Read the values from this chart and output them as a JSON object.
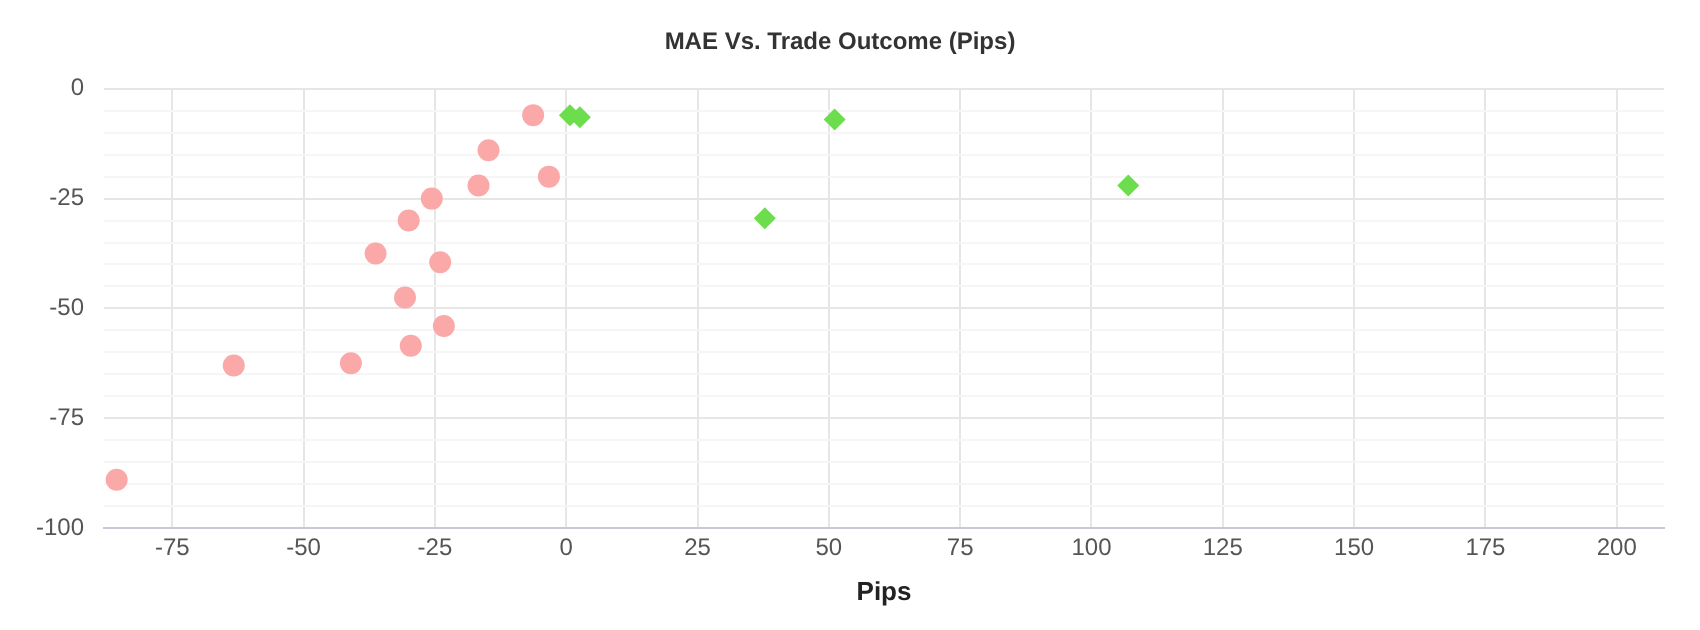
{
  "chart_data": {
    "type": "scatter",
    "title": "MAE Vs. Trade Outcome (Pips)",
    "xlabel": "Pips",
    "series": [
      {
        "color": "#fba8a8",
        "marker": "circle",
        "x": [
          -85.6,
          -63.3,
          -41,
          -29.6,
          -30.7,
          -23.3,
          -36.3,
          -24,
          -30,
          -25.6,
          -16.7,
          -14.8,
          -3.3,
          -6.3
        ],
        "values": [
          -89,
          -63,
          -62.5,
          -58.5,
          -47.5,
          -54,
          -37.5,
          -39.5,
          -30,
          -25,
          -22,
          -14,
          -20,
          -6
        ]
      },
      {
        "color": "#6cdd4c",
        "marker": "diamond",
        "x": [
          0.7,
          2.6,
          51.1,
          37.8,
          107
        ],
        "values": [
          -6,
          -6.5,
          -7,
          -29.5,
          -22
        ]
      }
    ],
    "xlim": [
      -88,
      209
    ],
    "xticks": [
      -75,
      -50,
      -25,
      0,
      25,
      50,
      75,
      100,
      125,
      150,
      175,
      200
    ],
    "ylim": [
      -100,
      0
    ],
    "yticks": [
      -100,
      {
        "value": -95,
        "label": null
      },
      {
        "value": -90,
        "label": null
      },
      {
        "value": -85,
        "label": null
      },
      {
        "value": -80,
        "label": null
      },
      -75,
      {
        "value": -70,
        "label": null
      },
      {
        "value": -65,
        "label": null
      },
      {
        "value": -60,
        "label": null
      },
      {
        "value": -55,
        "label": null
      },
      -50,
      {
        "value": -45,
        "label": null
      },
      {
        "value": -40,
        "label": null
      },
      {
        "value": -35,
        "label": null
      },
      {
        "value": -30,
        "label": null
      },
      -25,
      {
        "value": -20,
        "label": null
      },
      {
        "value": -15,
        "label": null
      },
      {
        "value": -10,
        "label": null
      },
      {
        "value": -5,
        "label": null
      },
      0
    ],
    "grid": true,
    "legend": false
  }
}
